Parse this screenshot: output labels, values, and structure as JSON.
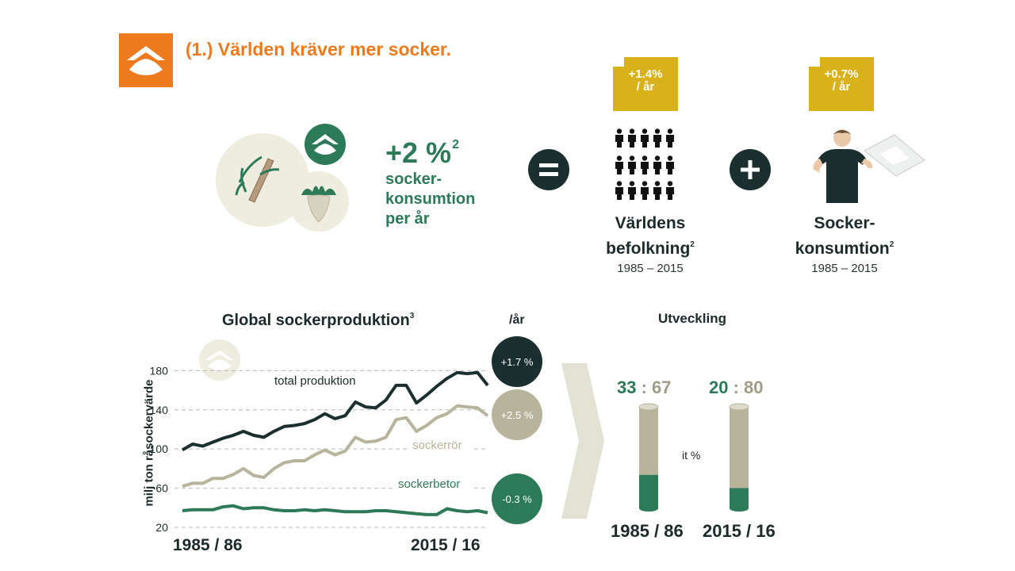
{
  "header": {
    "title": "(1.) Världen kräver mer socker."
  },
  "summary": {
    "growth_value": "+2 %",
    "growth_footnote": "2",
    "growth_lines": [
      "socker-",
      "konsumtion",
      "per år"
    ]
  },
  "equation": {
    "equals_symbol": "=",
    "plus_symbol": "+",
    "population": {
      "badge_line1": "+1.4%",
      "badge_line2": "/ år",
      "label_line1": "Världens",
      "label_line2": "befolkning",
      "footnote": "2",
      "years": "1985 – 2015"
    },
    "consumption": {
      "badge_line1": "+0.7%",
      "badge_line2": "/ år",
      "label_line1": "Socker-",
      "label_line2": "konsumtion",
      "footnote": "2",
      "years": "1985 – 2015"
    }
  },
  "colors": {
    "orange": "#ee7a1e",
    "dark_green": "#1c2f2f",
    "green": "#2c7a57",
    "beige": "#b8b49c",
    "gold": "#d9b21a"
  },
  "chart_data": [
    {
      "type": "line",
      "title": "Global sockerproduktion",
      "title_footnote": "3",
      "ylabel": "milj ton råsockervärde",
      "ylim": [
        20,
        190
      ],
      "yticks": [
        20,
        60,
        100,
        140,
        180
      ],
      "grid": true,
      "x_start_label": "1985 / 86",
      "x_end_label": "2015 / 16",
      "x": [
        "1985/86",
        "1986/87",
        "1987/88",
        "1988/89",
        "1989/90",
        "1990/91",
        "1991/92",
        "1992/93",
        "1993/94",
        "1994/95",
        "1995/96",
        "1996/97",
        "1997/98",
        "1998/99",
        "1999/00",
        "2000/01",
        "2001/02",
        "2002/03",
        "2003/04",
        "2004/05",
        "2005/06",
        "2006/07",
        "2007/08",
        "2008/09",
        "2009/10",
        "2010/11",
        "2011/12",
        "2012/13",
        "2013/14",
        "2014/15",
        "2015/16"
      ],
      "series": [
        {
          "name": "total produktion",
          "values": [
            99,
            105,
            103,
            107,
            111,
            114,
            118,
            114,
            112,
            118,
            123,
            124,
            126,
            130,
            136,
            131,
            134,
            148,
            143,
            142,
            150,
            165,
            165,
            147,
            155,
            164,
            172,
            178,
            177,
            178,
            165
          ],
          "rate_label": "+1.7 %"
        },
        {
          "name": "sockerrör",
          "values": [
            62,
            65,
            65,
            70,
            70,
            74,
            80,
            73,
            71,
            80,
            86,
            88,
            88,
            94,
            99,
            94,
            98,
            112,
            107,
            108,
            112,
            130,
            132,
            118,
            124,
            132,
            136,
            144,
            143,
            142,
            134
          ],
          "rate_label": "+2.5 %"
        },
        {
          "name": "sockerbetor",
          "values": [
            37,
            38,
            38,
            38,
            41,
            42,
            39,
            40,
            40,
            38,
            37,
            37,
            38,
            37,
            38,
            37,
            36,
            36,
            36,
            37,
            37,
            36,
            35,
            34,
            33,
            33,
            39,
            37,
            36,
            37,
            35
          ],
          "rate_label": "-0.3 %"
        }
      ],
      "per_year_header": "/år"
    },
    {
      "type": "bar",
      "title": "Utveckling",
      "categories": [
        "1985 / 86",
        "2015 / 16"
      ],
      "series": [
        {
          "name": "sockerbetor",
          "values": [
            33,
            20
          ]
        },
        {
          "name": "sockerrör",
          "values": [
            67,
            80
          ]
        }
      ],
      "ratio_labels": [
        {
          "left": "33",
          "sep": " : ",
          "right": "67"
        },
        {
          "left": "20",
          "sep": " : ",
          "right": "80"
        }
      ],
      "unit_label": "it %"
    }
  ]
}
